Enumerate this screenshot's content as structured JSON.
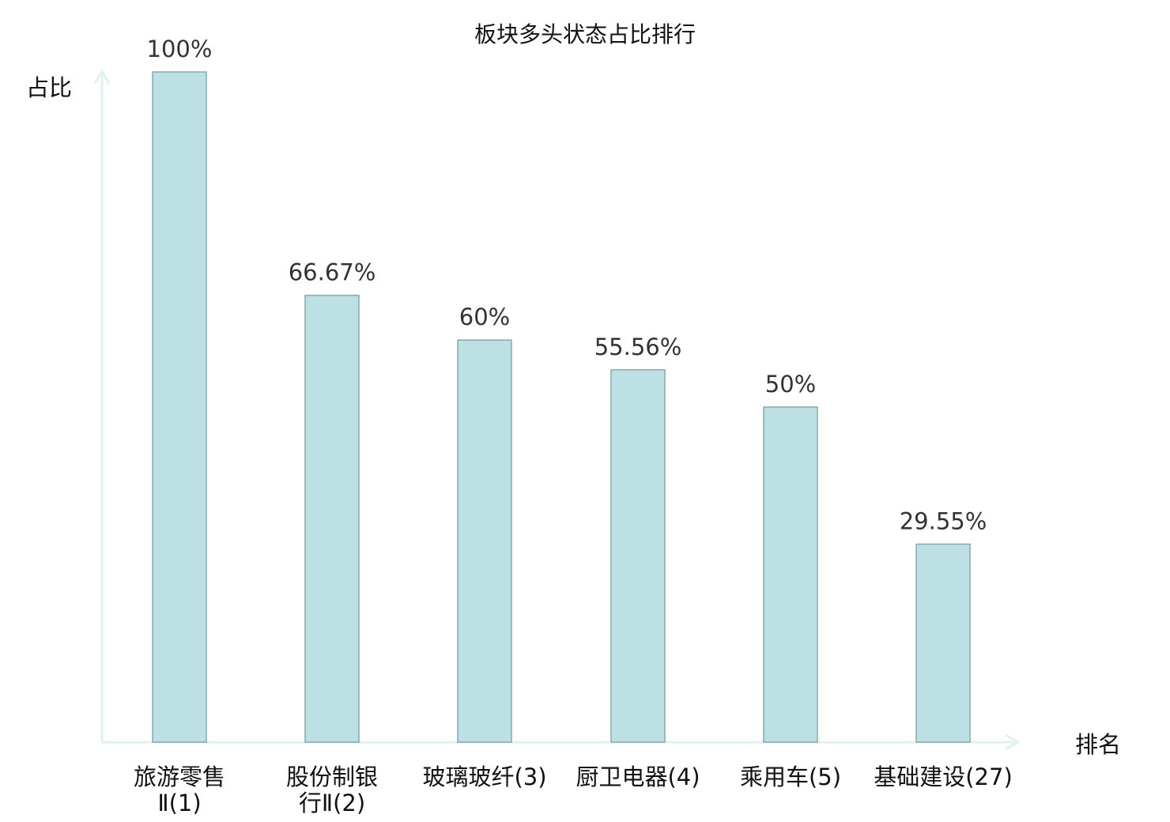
{
  "chart_data": {
    "type": "bar",
    "title": "板块多头状态占比排行",
    "xlabel": "排名",
    "ylabel": "占比",
    "categories": [
      [
        "旅游零售",
        "Ⅱ(1)"
      ],
      [
        "股份制银",
        "行Ⅱ(2)"
      ],
      [
        "玻璃玻纤(3)"
      ],
      [
        "厨卫电器(4)"
      ],
      [
        "乘用车(5)"
      ],
      [
        "基础建设(27)"
      ]
    ],
    "values": [
      100,
      66.67,
      60,
      55.56,
      50,
      29.55
    ],
    "data_labels": [
      "100%",
      "66.67%",
      "60%",
      "55.56%",
      "50%",
      "29.55%"
    ],
    "highlighted_category_index": 5,
    "ylim": [
      0,
      100
    ],
    "grid": false,
    "colors": {
      "bar_fill": "#bce0e3",
      "bar_stroke": "#8aa8aa",
      "axis": "#dff2ef",
      "highlight_label": "#e31a1c",
      "label": "#111111"
    }
  }
}
